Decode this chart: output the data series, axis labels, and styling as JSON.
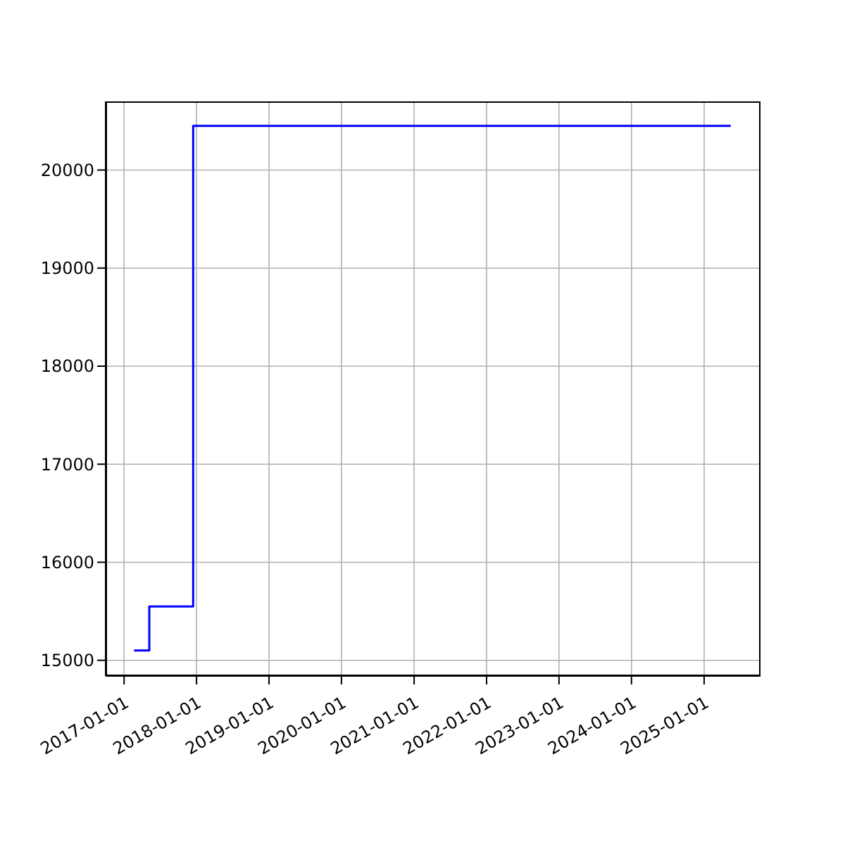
{
  "chart_data": {
    "type": "step",
    "x": [
      "2017-02-20",
      "2017-05-08",
      "2017-12-15",
      "2025-05-15"
    ],
    "series": [
      {
        "color": "#0000ff",
        "values": [
          15100,
          15550,
          20450,
          20450
        ]
      }
    ],
    "xlim": [
      "2016-09-30",
      "2025-10-12"
    ],
    "xticks": [
      "2017-01-01",
      "2018-01-01",
      "2019-01-01",
      "2020-01-01",
      "2021-01-01",
      "2022-01-01",
      "2023-01-01",
      "2024-01-01",
      "2025-01-01"
    ],
    "ylim": [
      14840,
      20700
    ],
    "yticks": [
      15000,
      16000,
      17000,
      18000,
      19000,
      20000
    ],
    "grid": true,
    "marker": "none",
    "line_style": "solid"
  }
}
